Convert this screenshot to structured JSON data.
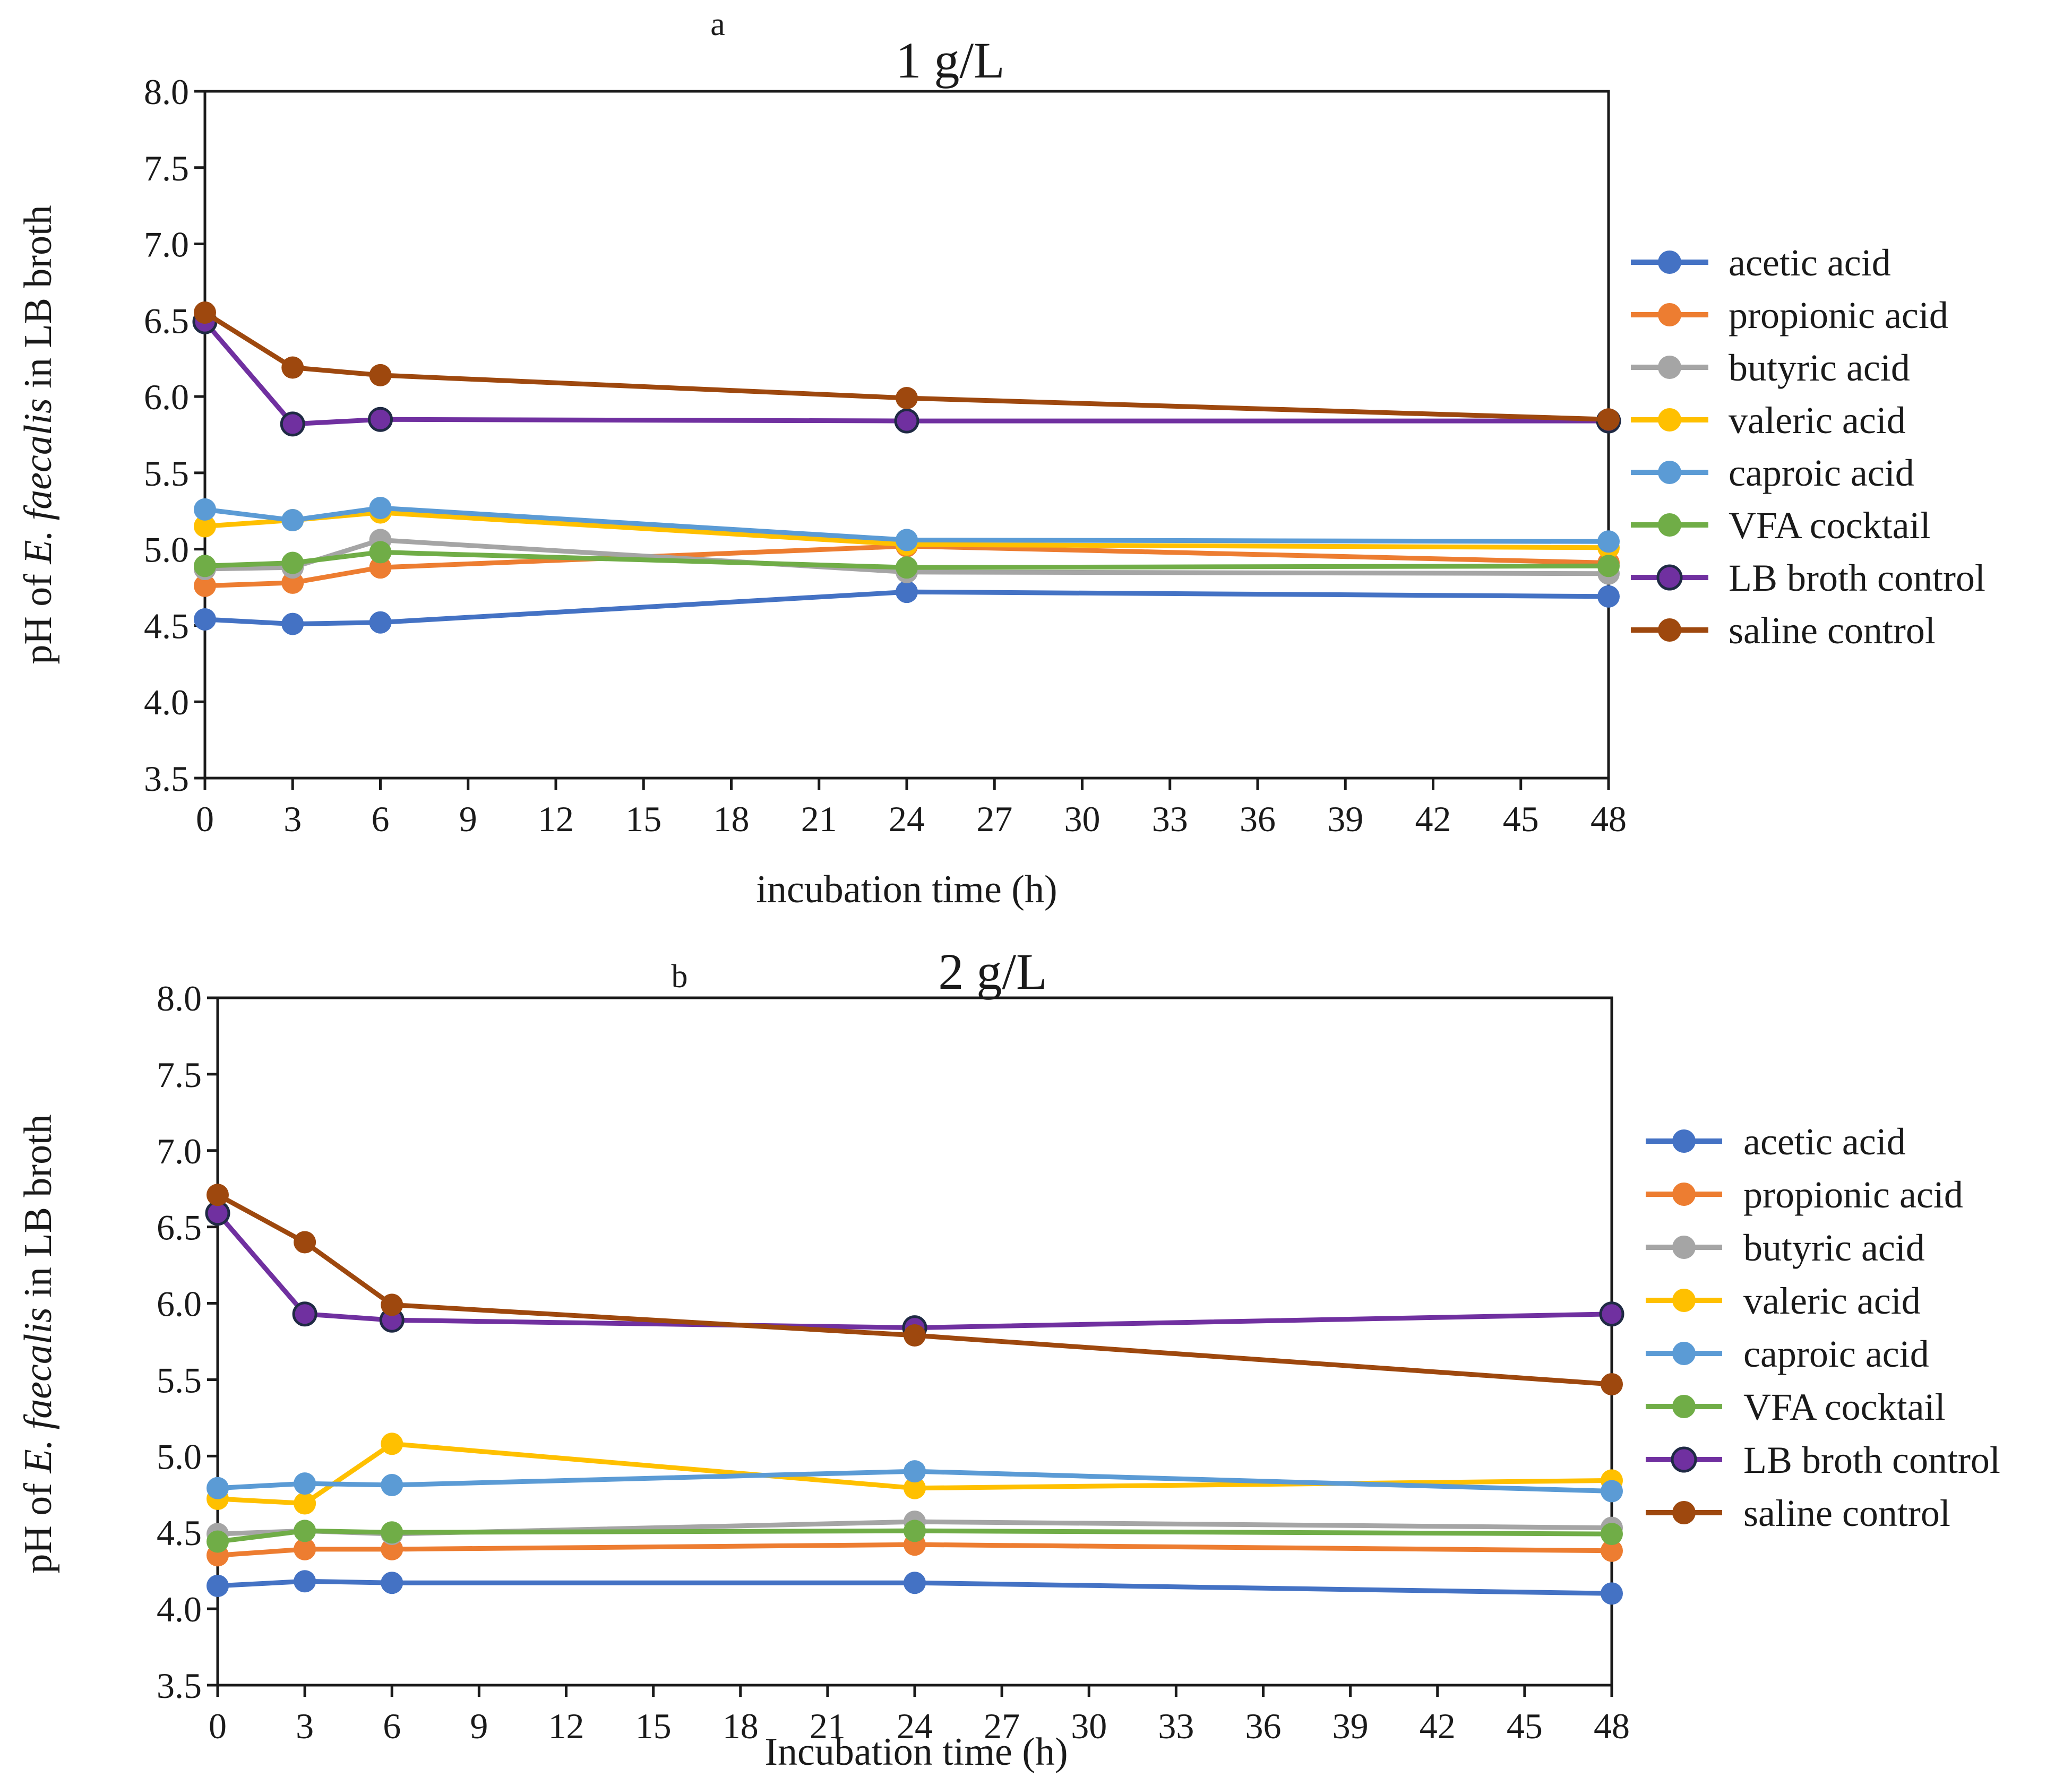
{
  "chart_data": [
    {
      "type": "line",
      "panel_letter": "a",
      "title": "1 g/L",
      "xlabel": "incubation time (h)",
      "ylabel_prefix": "pH of ",
      "ylabel_italic": "E. faecalis",
      "ylabel_suffix": " in LB broth",
      "xlim": [
        0,
        48
      ],
      "ylim": [
        3.5,
        8.0
      ],
      "x_ticks": [
        "0",
        "3",
        "6",
        "9",
        "12",
        "15",
        "18",
        "21",
        "24",
        "27",
        "30",
        "33",
        "36",
        "39",
        "42",
        "45",
        "48"
      ],
      "y_ticks": [
        "3.5",
        "4.0",
        "4.5",
        "5.0",
        "5.5",
        "6.0",
        "6.5",
        "7.0",
        "7.5",
        "8.0"
      ],
      "x": [
        0,
        3,
        6,
        24,
        48
      ],
      "legend_position": "right",
      "series": [
        {
          "name": "acetic acid",
          "color": "#4472C4",
          "values": [
            4.54,
            4.51,
            4.52,
            4.72,
            4.69
          ]
        },
        {
          "name": "propionic acid",
          "color": "#ED7D31",
          "values": [
            4.76,
            4.78,
            4.88,
            5.02,
            4.91
          ]
        },
        {
          "name": "butyric acid",
          "color": "#A5A5A5",
          "values": [
            4.87,
            4.88,
            5.06,
            4.85,
            4.84
          ]
        },
        {
          "name": "valeric acid",
          "color": "#FFC000",
          "values": [
            5.15,
            5.19,
            5.24,
            5.03,
            5.01
          ]
        },
        {
          "name": "caproic acid",
          "color": "#5B9BD5",
          "values": [
            5.26,
            5.19,
            5.27,
            5.06,
            5.05
          ]
        },
        {
          "name": "VFA cocktail",
          "color": "#70AD47",
          "values": [
            4.89,
            4.91,
            4.98,
            4.88,
            4.89
          ]
        },
        {
          "name": "LB broth control",
          "color": "#7030A0",
          "values": [
            6.49,
            5.82,
            5.85,
            5.84,
            5.84
          ]
        },
        {
          "name": "saline control",
          "color": "#9E480E",
          "values": [
            6.55,
            6.19,
            6.14,
            5.99,
            5.85
          ]
        }
      ]
    },
    {
      "type": "line",
      "panel_letter": "b",
      "title": "2 g/L",
      "xlabel": "Incubation time (h)",
      "ylabel_prefix": "pH of ",
      "ylabel_italic": "E. faecalis",
      "ylabel_suffix": " in LB  broth",
      "xlim": [
        0,
        48
      ],
      "ylim": [
        3.5,
        8.0
      ],
      "x_ticks": [
        "0",
        "3",
        "6",
        "9",
        "12",
        "15",
        "18",
        "21",
        "24",
        "27",
        "30",
        "33",
        "36",
        "39",
        "42",
        "45",
        "48"
      ],
      "y_ticks": [
        "3.5",
        "4.0",
        "4.5",
        "5.0",
        "5.5",
        "6.0",
        "6.5",
        "7.0",
        "7.5",
        "8.0"
      ],
      "x": [
        0,
        3,
        6,
        24,
        48
      ],
      "legend_position": "right",
      "series": [
        {
          "name": "acetic acid",
          "color": "#4472C4",
          "values": [
            4.15,
            4.18,
            4.17,
            4.17,
            4.1
          ]
        },
        {
          "name": "propionic acid",
          "color": "#ED7D31",
          "values": [
            4.35,
            4.39,
            4.39,
            4.42,
            4.38
          ]
        },
        {
          "name": "butyric acid",
          "color": "#A5A5A5",
          "values": [
            4.49,
            4.51,
            4.49,
            4.57,
            4.53
          ]
        },
        {
          "name": "valeric acid",
          "color": "#FFC000",
          "values": [
            4.72,
            4.69,
            5.08,
            4.79,
            4.84
          ]
        },
        {
          "name": "caproic acid",
          "color": "#5B9BD5",
          "values": [
            4.79,
            4.82,
            4.81,
            4.9,
            4.77
          ]
        },
        {
          "name": "VFA cocktail",
          "color": "#70AD47",
          "values": [
            4.44,
            4.51,
            4.5,
            4.51,
            4.49
          ]
        },
        {
          "name": "LB broth control",
          "color": "#7030A0",
          "values": [
            6.59,
            5.93,
            5.89,
            5.84,
            5.93
          ]
        },
        {
          "name": "saline control",
          "color": "#9E480E",
          "values": [
            6.71,
            6.4,
            5.99,
            5.79,
            5.47
          ]
        }
      ]
    }
  ]
}
